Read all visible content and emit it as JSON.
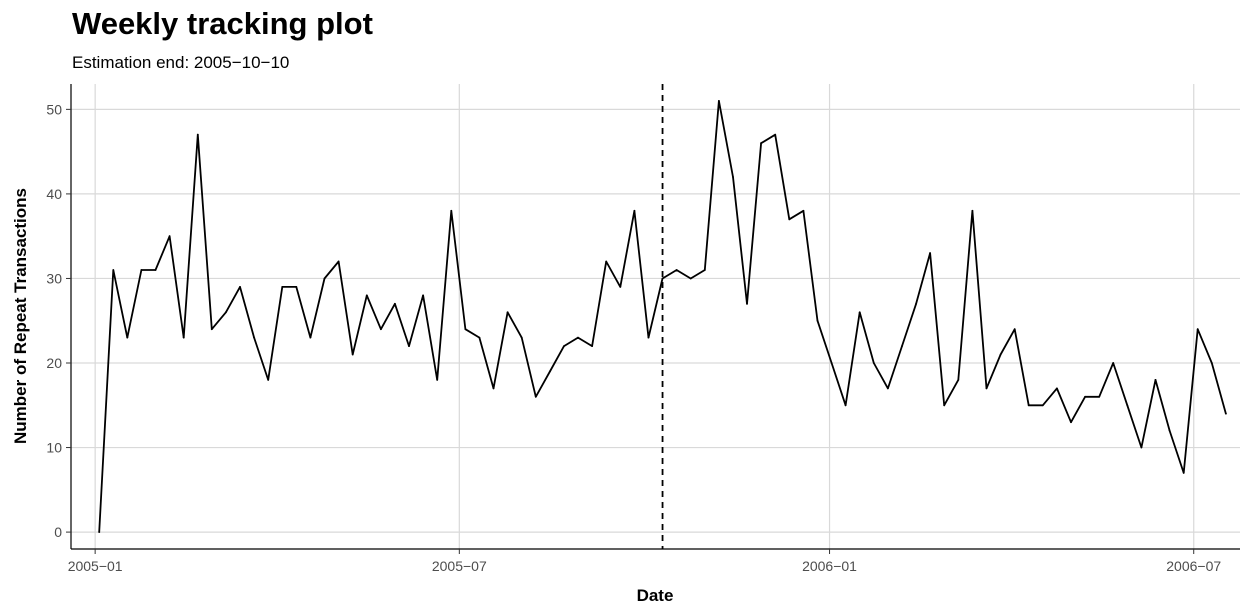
{
  "chart_data": {
    "type": "line",
    "title": "Weekly tracking plot",
    "subtitle": "Estimation end: 2005−10−10",
    "xlabel": "Date",
    "ylabel": "Number of Repeat Transactions",
    "x_start": "2005-01-03",
    "x_step_days": 7,
    "x_range": [
      "2004-12-20",
      "2006-07-24"
    ],
    "ylim": [
      -2,
      53
    ],
    "x_ticks": [
      {
        "date": "2005-01-01",
        "label": "2005−01"
      },
      {
        "date": "2005-07-01",
        "label": "2005−07"
      },
      {
        "date": "2006-01-01",
        "label": "2006−01"
      },
      {
        "date": "2006-07-01",
        "label": "2006−07"
      }
    ],
    "y_ticks": [
      0,
      10,
      20,
      30,
      40,
      50
    ],
    "estimation_end": "2005-10-10",
    "grid": true,
    "line_color": "#000000",
    "series": [
      {
        "values": [
          0,
          31,
          23,
          31,
          31,
          35,
          23,
          47,
          24,
          26,
          29,
          23,
          18,
          29,
          29,
          23,
          30,
          32,
          21,
          28,
          24,
          27,
          22,
          28,
          18,
          38,
          24,
          23,
          17,
          26,
          23,
          16,
          19,
          22,
          23,
          22,
          32,
          29,
          38,
          23,
          30,
          31,
          30,
          31,
          51,
          42,
          27,
          46,
          47,
          37,
          38,
          25,
          20,
          15,
          26,
          20,
          17,
          22,
          27,
          33,
          15,
          18,
          38,
          17,
          21,
          24,
          15,
          15,
          17,
          13,
          16,
          16,
          20,
          15,
          10,
          18,
          12,
          7,
          24,
          20,
          14
        ]
      }
    ]
  }
}
